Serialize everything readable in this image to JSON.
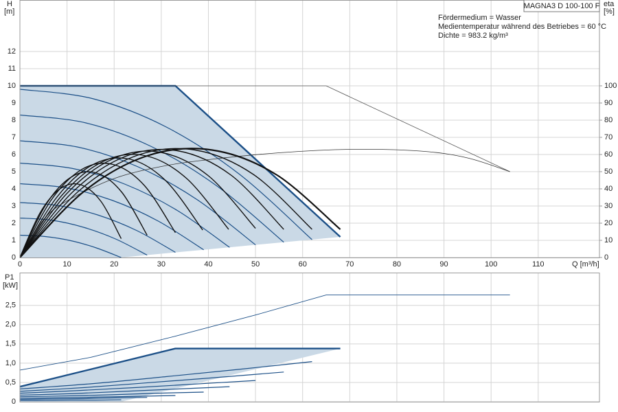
{
  "chart_data": [
    {
      "type": "line",
      "title": "MAGNA3 D 100-100 F",
      "annotations": [
        "Fördermedium = Wasser",
        "Medientemperatur während des Betriebes = 60 °C",
        "Dichte = 983.2 kg/m³"
      ],
      "ylabel": "H",
      "yunit": "[m]",
      "y2label": "eta",
      "y2unit": "[%]",
      "xlabel": "Q [m³/h]",
      "xlim": [
        0,
        123
      ],
      "xticks": [
        0,
        10,
        20,
        30,
        40,
        50,
        60,
        70,
        80,
        90,
        100,
        110
      ],
      "ylim": [
        0,
        15
      ],
      "yticks": [
        0,
        1,
        2,
        3,
        4,
        5,
        6,
        7,
        8,
        9,
        10,
        11,
        12
      ],
      "y2lim": [
        0,
        150
      ],
      "y2ticks": [
        0,
        10,
        20,
        30,
        40,
        50,
        60,
        70,
        80,
        90,
        100
      ],
      "grid": true,
      "series": [
        {
          "fill": "#cad9e6",
          "area": true,
          "x": [
            0,
            0,
            33,
            68,
            21.5
          ],
          "values": [
            0,
            10,
            10,
            1.2,
            0
          ]
        },
        {
          "color": "#1b4f87",
          "line_width": 1.2,
          "smooth": true,
          "x": [
            0,
            15.5,
            31,
            46.5,
            62
          ],
          "values": [
            9.8,
            9.25,
            7.61,
            4.87,
            1.04
          ]
        },
        {
          "color": "#1b4f87",
          "line_width": 1.2,
          "smooth": true,
          "x": [
            0,
            14,
            28,
            42,
            56
          ],
          "values": [
            8.3,
            7.84,
            6.45,
            4.13,
            0.89
          ]
        },
        {
          "color": "#1b4f87",
          "line_width": 1.2,
          "smooth": true,
          "x": [
            0,
            12.5,
            25,
            37.5,
            50
          ],
          "values": [
            6.8,
            6.42,
            5.29,
            3.39,
            0.74
          ]
        },
        {
          "color": "#1b4f87",
          "line_width": 1.2,
          "smooth": true,
          "x": [
            0,
            11.1,
            22.3,
            33.4,
            44.5
          ],
          "values": [
            5.5,
            5.19,
            4.27,
            2.74,
            0.59
          ]
        },
        {
          "color": "#1b4f87",
          "line_width": 1.2,
          "smooth": true,
          "x": [
            0,
            9.8,
            19.5,
            29.3,
            39
          ],
          "values": [
            4.3,
            4.06,
            3.34,
            2.13,
            0.45
          ]
        },
        {
          "color": "#1b4f87",
          "line_width": 1.2,
          "smooth": true,
          "x": [
            0,
            8.3,
            16.5,
            24.8,
            33
          ],
          "values": [
            3.2,
            3.02,
            2.48,
            1.57,
            0.3
          ]
        },
        {
          "color": "#1b4f87",
          "line_width": 1.2,
          "smooth": true,
          "x": [
            0,
            6.8,
            13.5,
            20.3,
            27
          ],
          "values": [
            2.3,
            2.17,
            1.76,
            1.08,
            0.14
          ]
        },
        {
          "color": "#1b4f87",
          "line_width": 1.2,
          "smooth": true,
          "x": [
            0,
            5.4,
            10.8,
            16.1,
            21.5
          ],
          "values": [
            1.3,
            1.22,
            0.98,
            0.57,
            0
          ]
        },
        {
          "color": "#1b4f87",
          "line_width": 2.4,
          "x": [
            0,
            33,
            68
          ],
          "values": [
            10,
            10,
            1.2
          ]
        },
        {
          "color": "#555555",
          "line_width": 0.8,
          "x": [
            0,
            65,
            104
          ],
          "values": [
            10,
            10,
            5
          ]
        },
        {
          "color": "#333333",
          "line_width": 0.8,
          "smooth": true,
          "axis": "y2",
          "x": [
            0,
            5,
            10,
            20,
            30,
            40,
            55,
            70,
            85,
            95,
            104
          ],
          "values": [
            0,
            22,
            33,
            46,
            53,
            57,
            61,
            63,
            62,
            58,
            50
          ]
        },
        {
          "color": "#111111",
          "line_width": 1.4,
          "smooth": true,
          "axis": "y2",
          "x": [
            0,
            4.3,
            8.6,
            12.9,
            17.2,
            21.5
          ],
          "values": [
            0,
            26.1,
            40.2,
            42.4,
            32.7,
            11
          ]
        },
        {
          "color": "#111111",
          "line_width": 1.4,
          "smooth": true,
          "axis": "y2",
          "x": [
            0,
            5.4,
            10.8,
            16.2,
            21.6,
            27
          ],
          "values": [
            0,
            30.3,
            46.7,
            49.3,
            38.1,
            13
          ]
        },
        {
          "color": "#111111",
          "line_width": 1.4,
          "smooth": true,
          "axis": "y2",
          "x": [
            0,
            6.6,
            13.2,
            19.8,
            26.4,
            33
          ],
          "values": [
            0,
            33.3,
            51.4,
            54.2,
            42,
            14.5
          ]
        },
        {
          "color": "#111111",
          "line_width": 1.4,
          "smooth": true,
          "axis": "y2",
          "x": [
            0,
            7.8,
            15.5,
            23.3,
            31,
            38.8
          ],
          "values": [
            0,
            35,
            54.1,
            57.3,
            44.6,
            16
          ]
        },
        {
          "color": "#111111",
          "line_width": 1.4,
          "smooth": true,
          "axis": "y2",
          "x": [
            0,
            8.9,
            17.7,
            26.6,
            35.4,
            44.3
          ],
          "values": [
            0,
            36.2,
            56,
            59.3,
            46,
            16.4
          ]
        },
        {
          "color": "#111111",
          "line_width": 1.4,
          "smooth": true,
          "axis": "y2",
          "x": [
            0,
            10,
            20,
            30,
            40,
            50
          ],
          "values": [
            0,
            37.4,
            57.8,
            61.2,
            47.6,
            17
          ]
        },
        {
          "color": "#111111",
          "line_width": 1.4,
          "smooth": true,
          "axis": "y2",
          "x": [
            0,
            11.2,
            22.4,
            33.6,
            44.8,
            56
          ],
          "values": [
            0,
            38.2,
            58.9,
            62.1,
            48,
            16.4
          ]
        },
        {
          "color": "#111111",
          "line_width": 1.4,
          "smooth": true,
          "axis": "y2",
          "x": [
            0,
            12.4,
            24.8,
            37.2,
            49.6,
            62
          ],
          "values": [
            0,
            38.5,
            59.4,
            62.6,
            48.3,
            16.4
          ]
        },
        {
          "color": "#111111",
          "line_width": 2.2,
          "smooth": true,
          "axis": "y2",
          "x": [
            0,
            13.6,
            27.2,
            40.8,
            54.4,
            68
          ],
          "values": [
            0,
            38.5,
            59.4,
            62.6,
            48.3,
            16.4
          ]
        }
      ]
    },
    {
      "type": "line",
      "ylabel": "P1",
      "yunit": "[kW]",
      "xlim": [
        0,
        123
      ],
      "xticks": [
        0,
        10,
        20,
        30,
        40,
        50,
        60,
        70,
        80,
        90,
        100,
        110
      ],
      "ylim": [
        0,
        3.35
      ],
      "yticks": [
        0,
        {
          "value": 0.5,
          "label": "0,5"
        },
        {
          "value": 1,
          "label": "1,0"
        },
        {
          "value": 1.5,
          "label": "1,5"
        },
        {
          "value": 2,
          "label": "2,0"
        },
        {
          "value": 2.5,
          "label": "2,5"
        }
      ],
      "grid": true,
      "series": [
        {
          "fill": "#cad9e6",
          "area": true,
          "x": [
            0,
            0,
            33,
            68,
            21.5
          ],
          "values": [
            0,
            0.39,
            1.38,
            1.38,
            0
          ]
        },
        {
          "color": "#1b4f87",
          "line_width": 1.2,
          "smooth": true,
          "x": [
            0,
            15.5,
            31,
            46.5,
            62
          ],
          "values": [
            0.33,
            0.47,
            0.65,
            0.84,
            1.04
          ]
        },
        {
          "color": "#1b4f87",
          "line_width": 1.2,
          "smooth": true,
          "x": [
            0,
            14,
            28,
            42,
            56
          ],
          "values": [
            0.27,
            0.37,
            0.5,
            0.63,
            0.77
          ]
        },
        {
          "color": "#1b4f87",
          "line_width": 1.2,
          "smooth": true,
          "x": [
            0,
            12.5,
            25,
            37.5,
            50
          ],
          "values": [
            0.22,
            0.29,
            0.37,
            0.46,
            0.55
          ]
        },
        {
          "color": "#1b4f87",
          "line_width": 1.2,
          "smooth": true,
          "x": [
            0,
            11.1,
            22.3,
            33.4,
            44.5
          ],
          "values": [
            0.17,
            0.21,
            0.27,
            0.33,
            0.39
          ]
        },
        {
          "color": "#1b4f87",
          "line_width": 1.2,
          "smooth": true,
          "x": [
            0,
            9.8,
            19.5,
            29.3,
            39
          ],
          "values": [
            0.13,
            0.15,
            0.18,
            0.22,
            0.25
          ]
        },
        {
          "color": "#1b4f87",
          "line_width": 1.2,
          "smooth": true,
          "x": [
            0,
            8.3,
            16.5,
            24.8,
            33
          ],
          "values": [
            0.09,
            0.1,
            0.12,
            0.14,
            0.16
          ]
        },
        {
          "color": "#1b4f87",
          "line_width": 1.2,
          "smooth": true,
          "x": [
            0,
            6.8,
            13.5,
            20.3,
            27
          ],
          "values": [
            0.06,
            0.07,
            0.08,
            0.1,
            0.11
          ]
        },
        {
          "color": "#1b4f87",
          "line_width": 1.2,
          "smooth": true,
          "x": [
            0,
            5.4,
            10.8,
            16.1,
            21.5
          ],
          "values": [
            0.03,
            0.03,
            0.04,
            0.04,
            0.05
          ]
        },
        {
          "color": "#1b4f87",
          "line_width": 2.4,
          "x": [
            0,
            33,
            68
          ],
          "values": [
            0.39,
            1.38,
            1.38
          ]
        },
        {
          "color": "#1b4f87",
          "line_width": 0.9,
          "x": [
            0,
            15,
            33,
            50,
            65,
            104
          ],
          "values": [
            0.82,
            1.15,
            1.7,
            2.25,
            2.77,
            2.77
          ]
        }
      ]
    }
  ]
}
